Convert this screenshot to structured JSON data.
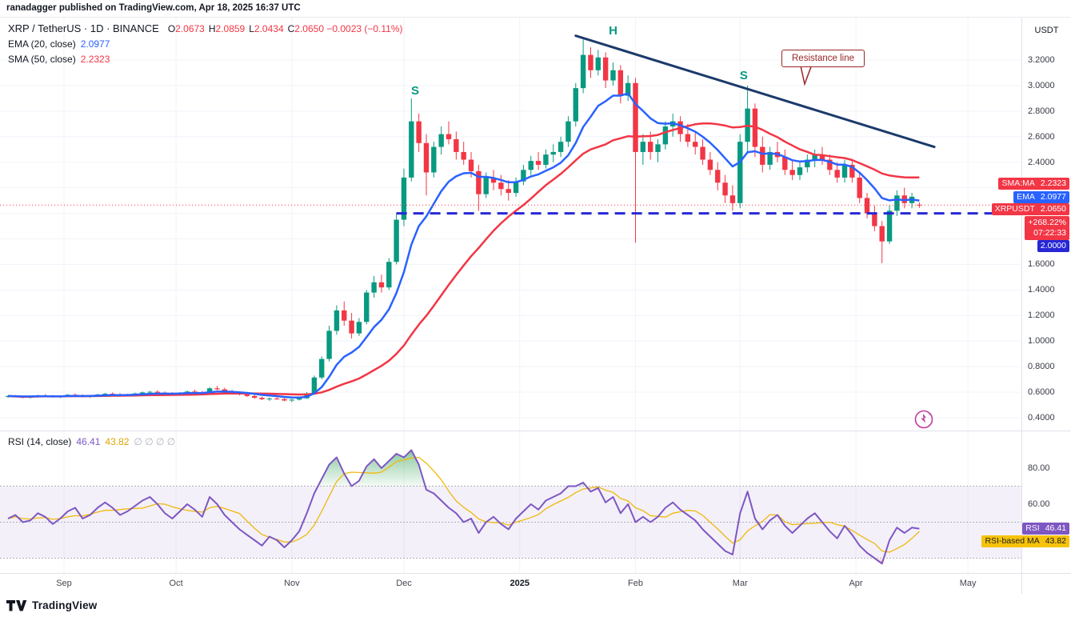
{
  "header": {
    "byline": "ranadagger published on TradingView.com, Apr 18, 2025 16:37 UTC"
  },
  "main_legend": {
    "symbol": "XRP / TetherUS · 1D · BINANCE",
    "o_label": "O",
    "o": "2.0673",
    "h_label": "H",
    "h": "2.0859",
    "l_label": "L",
    "l": "2.0434",
    "c_label": "C",
    "c": "2.0650",
    "change": "−0.0023 (−0.11%)",
    "ema_label": "EMA (20, close)",
    "ema_value": "2.0977",
    "sma_label": "SMA (50, close)",
    "sma_value": "2.2323"
  },
  "rsi_legend": {
    "label": "RSI (14, close)",
    "rsi_value": "46.41",
    "ma_value": "43.82",
    "hidden_values": "∅ ∅ ∅ ∅"
  },
  "axis": {
    "currency": "USDT"
  },
  "badges": {
    "sma": {
      "label": "SMA:MA",
      "value": "2.2323"
    },
    "ema": {
      "label": "EMA",
      "value": "2.0977"
    },
    "price": {
      "label": "XRPUSDT",
      "value": "2.0650"
    },
    "change": {
      "pct": "+268.22%",
      "countdown": "07:22:33"
    },
    "level": {
      "value": "2.0000"
    },
    "rsi": {
      "label": "RSI",
      "value": "46.41"
    },
    "rsi_ma": {
      "label": "RSI-based MA",
      "value": "43.82"
    }
  },
  "footer": {
    "brand": "TradingView"
  },
  "colors": {
    "up": "#089981",
    "down": "#f23645",
    "ema": "#2962ff",
    "sma": "#f23645",
    "neckline": "#2727d6",
    "resistance": "#1b3a6b",
    "rsi": "#7e57c2",
    "rsi_ma": "#f0b90b",
    "hs_label": "#089981",
    "callout": "#992626",
    "flash": "#c2399b",
    "current_price": "#f23645"
  },
  "chart_data": [
    {
      "type": "candlestick",
      "title": "XRP / TetherUS · 1D · BINANCE",
      "ylabel": "Price (USDT)",
      "ylim": [
        0.3,
        3.53
      ],
      "grid": true,
      "price_tick_labels": [
        "3.2000",
        "3.0000",
        "2.8000",
        "2.6000",
        "2.4000",
        "1.6000",
        "1.4000",
        "1.2000",
        "1.0000",
        "0.8000",
        "0.6000",
        "0.4000"
      ],
      "time_ticks": [
        {
          "label": "Sep",
          "day": 15
        },
        {
          "label": "Oct",
          "day": 45
        },
        {
          "label": "Nov",
          "day": 76
        },
        {
          "label": "Dec",
          "day": 106
        },
        {
          "label": "2025",
          "day": 137,
          "bold": true
        },
        {
          "label": "Feb",
          "day": 168
        },
        {
          "label": "Mar",
          "day": 196
        },
        {
          "label": "Apr",
          "day": 227
        },
        {
          "label": "May",
          "day": 257
        }
      ],
      "candle_interval_days": 2,
      "candles": [
        [
          0.565,
          0.575,
          0.555,
          0.57
        ],
        [
          0.57,
          0.578,
          0.56,
          0.563
        ],
        [
          0.563,
          0.572,
          0.552,
          0.558
        ],
        [
          0.558,
          0.57,
          0.55,
          0.566
        ],
        [
          0.566,
          0.58,
          0.558,
          0.575
        ],
        [
          0.575,
          0.585,
          0.565,
          0.57
        ],
        [
          0.57,
          0.578,
          0.558,
          0.562
        ],
        [
          0.562,
          0.574,
          0.554,
          0.57
        ],
        [
          0.57,
          0.585,
          0.562,
          0.58
        ],
        [
          0.58,
          0.59,
          0.57,
          0.575
        ],
        [
          0.575,
          0.582,
          0.56,
          0.565
        ],
        [
          0.565,
          0.576,
          0.555,
          0.572
        ],
        [
          0.572,
          0.588,
          0.565,
          0.582
        ],
        [
          0.582,
          0.595,
          0.572,
          0.588
        ],
        [
          0.588,
          0.598,
          0.578,
          0.584
        ],
        [
          0.584,
          0.592,
          0.57,
          0.576
        ],
        [
          0.576,
          0.588,
          0.566,
          0.583
        ],
        [
          0.583,
          0.596,
          0.574,
          0.59
        ],
        [
          0.59,
          0.605,
          0.582,
          0.598
        ],
        [
          0.598,
          0.61,
          0.588,
          0.603
        ],
        [
          0.603,
          0.615,
          0.592,
          0.596
        ],
        [
          0.596,
          0.606,
          0.584,
          0.59
        ],
        [
          0.59,
          0.6,
          0.578,
          0.585
        ],
        [
          0.585,
          0.6,
          0.576,
          0.595
        ],
        [
          0.595,
          0.612,
          0.588,
          0.605
        ],
        [
          0.605,
          0.62,
          0.596,
          0.6
        ],
        [
          0.6,
          0.61,
          0.585,
          0.592
        ],
        [
          0.592,
          0.64,
          0.588,
          0.63
        ],
        [
          0.63,
          0.648,
          0.615,
          0.622
        ],
        [
          0.622,
          0.635,
          0.6,
          0.608
        ],
        [
          0.608,
          0.618,
          0.588,
          0.595
        ],
        [
          0.595,
          0.605,
          0.575,
          0.582
        ],
        [
          0.582,
          0.592,
          0.562,
          0.57
        ],
        [
          0.57,
          0.58,
          0.548,
          0.556
        ],
        [
          0.556,
          0.566,
          0.538,
          0.545
        ],
        [
          0.545,
          0.558,
          0.532,
          0.55
        ],
        [
          0.55,
          0.562,
          0.54,
          0.546
        ],
        [
          0.546,
          0.556,
          0.528,
          0.535
        ],
        [
          0.535,
          0.548,
          0.522,
          0.542
        ],
        [
          0.542,
          0.56,
          0.535,
          0.552
        ],
        [
          0.552,
          0.6,
          0.548,
          0.59
        ],
        [
          0.59,
          0.73,
          0.585,
          0.715
        ],
        [
          0.715,
          0.88,
          0.7,
          0.86
        ],
        [
          0.86,
          1.12,
          0.84,
          1.08
        ],
        [
          1.08,
          1.28,
          1.05,
          1.24
        ],
        [
          1.24,
          1.31,
          1.12,
          1.16
        ],
        [
          1.16,
          1.22,
          1.02,
          1.06
        ],
        [
          1.06,
          1.18,
          1.04,
          1.15
        ],
        [
          1.15,
          1.4,
          1.13,
          1.38
        ],
        [
          1.38,
          1.51,
          1.34,
          1.46
        ],
        [
          1.46,
          1.52,
          1.38,
          1.42
        ],
        [
          1.42,
          1.65,
          1.4,
          1.62
        ],
        [
          1.62,
          2.0,
          1.6,
          1.95
        ],
        [
          1.95,
          2.35,
          1.9,
          2.28
        ],
        [
          2.28,
          2.9,
          2.25,
          2.72
        ],
        [
          2.72,
          2.78,
          2.48,
          2.55
        ],
        [
          2.55,
          2.62,
          2.14,
          2.32
        ],
        [
          2.32,
          2.56,
          2.28,
          2.52
        ],
        [
          2.52,
          2.68,
          2.46,
          2.62
        ],
        [
          2.62,
          2.72,
          2.54,
          2.58
        ],
        [
          2.58,
          2.64,
          2.42,
          2.48
        ],
        [
          2.48,
          2.56,
          2.38,
          2.42
        ],
        [
          2.42,
          2.48,
          2.28,
          2.33
        ],
        [
          2.33,
          2.38,
          2.02,
          2.15
        ],
        [
          2.15,
          2.32,
          2.12,
          2.28
        ],
        [
          2.28,
          2.34,
          2.18,
          2.24
        ],
        [
          2.24,
          2.3,
          2.14,
          2.19
        ],
        [
          2.19,
          2.26,
          2.1,
          2.16
        ],
        [
          2.16,
          2.28,
          2.13,
          2.25
        ],
        [
          2.25,
          2.38,
          2.22,
          2.34
        ],
        [
          2.34,
          2.45,
          2.3,
          2.41
        ],
        [
          2.41,
          2.48,
          2.34,
          2.38
        ],
        [
          2.38,
          2.5,
          2.35,
          2.46
        ],
        [
          2.46,
          2.54,
          2.4,
          2.48
        ],
        [
          2.48,
          2.6,
          2.44,
          2.56
        ],
        [
          2.56,
          2.76,
          2.52,
          2.72
        ],
        [
          2.72,
          3.02,
          2.68,
          2.98
        ],
        [
          2.98,
          3.36,
          2.94,
          3.24
        ],
        [
          3.24,
          3.3,
          3.06,
          3.12
        ],
        [
          3.12,
          3.28,
          3.08,
          3.22
        ],
        [
          3.22,
          3.26,
          2.98,
          3.04
        ],
        [
          3.04,
          3.18,
          3.0,
          3.12
        ],
        [
          3.12,
          3.16,
          2.86,
          2.92
        ],
        [
          2.92,
          3.08,
          2.88,
          3.02
        ],
        [
          3.02,
          3.06,
          1.77,
          2.48
        ],
        [
          2.48,
          2.62,
          2.38,
          2.56
        ],
        [
          2.56,
          2.64,
          2.42,
          2.48
        ],
        [
          2.48,
          2.58,
          2.4,
          2.54
        ],
        [
          2.54,
          2.72,
          2.5,
          2.68
        ],
        [
          2.68,
          2.78,
          2.6,
          2.72
        ],
        [
          2.72,
          2.76,
          2.56,
          2.62
        ],
        [
          2.62,
          2.7,
          2.52,
          2.56
        ],
        [
          2.56,
          2.64,
          2.46,
          2.52
        ],
        [
          2.52,
          2.58,
          2.38,
          2.42
        ],
        [
          2.42,
          2.48,
          2.3,
          2.34
        ],
        [
          2.34,
          2.4,
          2.18,
          2.24
        ],
        [
          2.24,
          2.3,
          2.08,
          2.14
        ],
        [
          2.14,
          2.22,
          2.02,
          2.08
        ],
        [
          2.08,
          2.62,
          2.04,
          2.56
        ],
        [
          2.56,
          3.0,
          2.48,
          2.82
        ],
        [
          2.82,
          2.86,
          2.44,
          2.52
        ],
        [
          2.52,
          2.6,
          2.32,
          2.38
        ],
        [
          2.38,
          2.52,
          2.34,
          2.48
        ],
        [
          2.48,
          2.56,
          2.4,
          2.44
        ],
        [
          2.44,
          2.5,
          2.3,
          2.34
        ],
        [
          2.34,
          2.42,
          2.26,
          2.3
        ],
        [
          2.3,
          2.4,
          2.26,
          2.36
        ],
        [
          2.36,
          2.46,
          2.32,
          2.42
        ],
        [
          2.42,
          2.5,
          2.36,
          2.46
        ],
        [
          2.46,
          2.52,
          2.38,
          2.42
        ],
        [
          2.42,
          2.46,
          2.3,
          2.34
        ],
        [
          2.34,
          2.4,
          2.24,
          2.28
        ],
        [
          2.28,
          2.42,
          2.24,
          2.38
        ],
        [
          2.38,
          2.42,
          2.24,
          2.28
        ],
        [
          2.28,
          2.32,
          2.08,
          2.12
        ],
        [
          2.12,
          2.16,
          1.96,
          2.0
        ],
        [
          2.0,
          2.06,
          1.86,
          1.9
        ],
        [
          1.9,
          1.94,
          1.61,
          1.78
        ],
        [
          1.78,
          2.06,
          1.76,
          2.02
        ],
        [
          2.02,
          2.18,
          1.98,
          2.14
        ],
        [
          2.14,
          2.2,
          2.04,
          2.08
        ],
        [
          2.08,
          2.16,
          2.04,
          2.13
        ],
        [
          2.0673,
          2.0859,
          2.0434,
          2.065
        ]
      ],
      "overlays": [
        {
          "name": "EMA (20, close)",
          "display_value": 2.0977,
          "type": "ema",
          "period": 10,
          "color": "#2962ff"
        },
        {
          "name": "SMA (50, close)",
          "display_value": 2.2323,
          "type": "sma",
          "period": 25,
          "color": "#f23645"
        }
      ],
      "last_price": 2.065,
      "drawings": {
        "neckline": {
          "type": "horizontal-dashed",
          "price": 2.0,
          "from_day": 104,
          "to_day": 270,
          "color": "#2727d6"
        },
        "resistance": {
          "type": "trendline",
          "from": {
            "day": 152,
            "price": 3.39
          },
          "to": {
            "day": 248,
            "price": 2.52
          },
          "color": "#1b3a6b"
        },
        "labels": [
          {
            "text": "H",
            "day": 162,
            "price": 3.4
          },
          {
            "text": "S",
            "day": 109,
            "price": 2.93
          },
          {
            "text": "S",
            "day": 197,
            "price": 3.05
          }
        ],
        "callout": {
          "text": "Resistance line"
        }
      }
    },
    {
      "type": "line",
      "title": "RSI (14, close)",
      "last_value": 46.41,
      "ma_last_value": 43.82,
      "ma_period": 5,
      "bands": {
        "upper": 70,
        "middle": 50,
        "lower": 30
      },
      "value_tick_labels": [
        "80.00",
        "60.00"
      ],
      "ylim": [
        20,
        100
      ],
      "values": [
        52,
        54,
        50,
        51,
        55,
        53,
        49,
        52,
        56,
        58,
        52,
        54,
        58,
        61,
        58,
        54,
        56,
        59,
        62,
        64,
        60,
        55,
        52,
        56,
        60,
        57,
        53,
        64,
        60,
        54,
        50,
        46,
        43,
        40,
        37,
        42,
        40,
        36,
        40,
        45,
        55,
        66,
        74,
        82,
        86,
        77,
        70,
        73,
        81,
        85,
        80,
        84,
        88,
        86,
        90,
        82,
        68,
        66,
        62,
        58,
        55,
        50,
        52,
        44,
        50,
        53,
        49,
        46,
        52,
        56,
        60,
        57,
        62,
        64,
        66,
        70,
        70,
        72,
        67,
        69,
        61,
        64,
        55,
        60,
        50,
        53,
        50,
        53,
        58,
        61,
        57,
        54,
        51,
        46,
        42,
        38,
        34,
        32,
        55,
        67,
        52,
        46,
        51,
        54,
        48,
        44,
        48,
        52,
        55,
        50,
        45,
        41,
        48,
        43,
        37,
        33,
        30,
        27,
        40,
        47,
        44,
        47,
        46.41
      ]
    }
  ]
}
